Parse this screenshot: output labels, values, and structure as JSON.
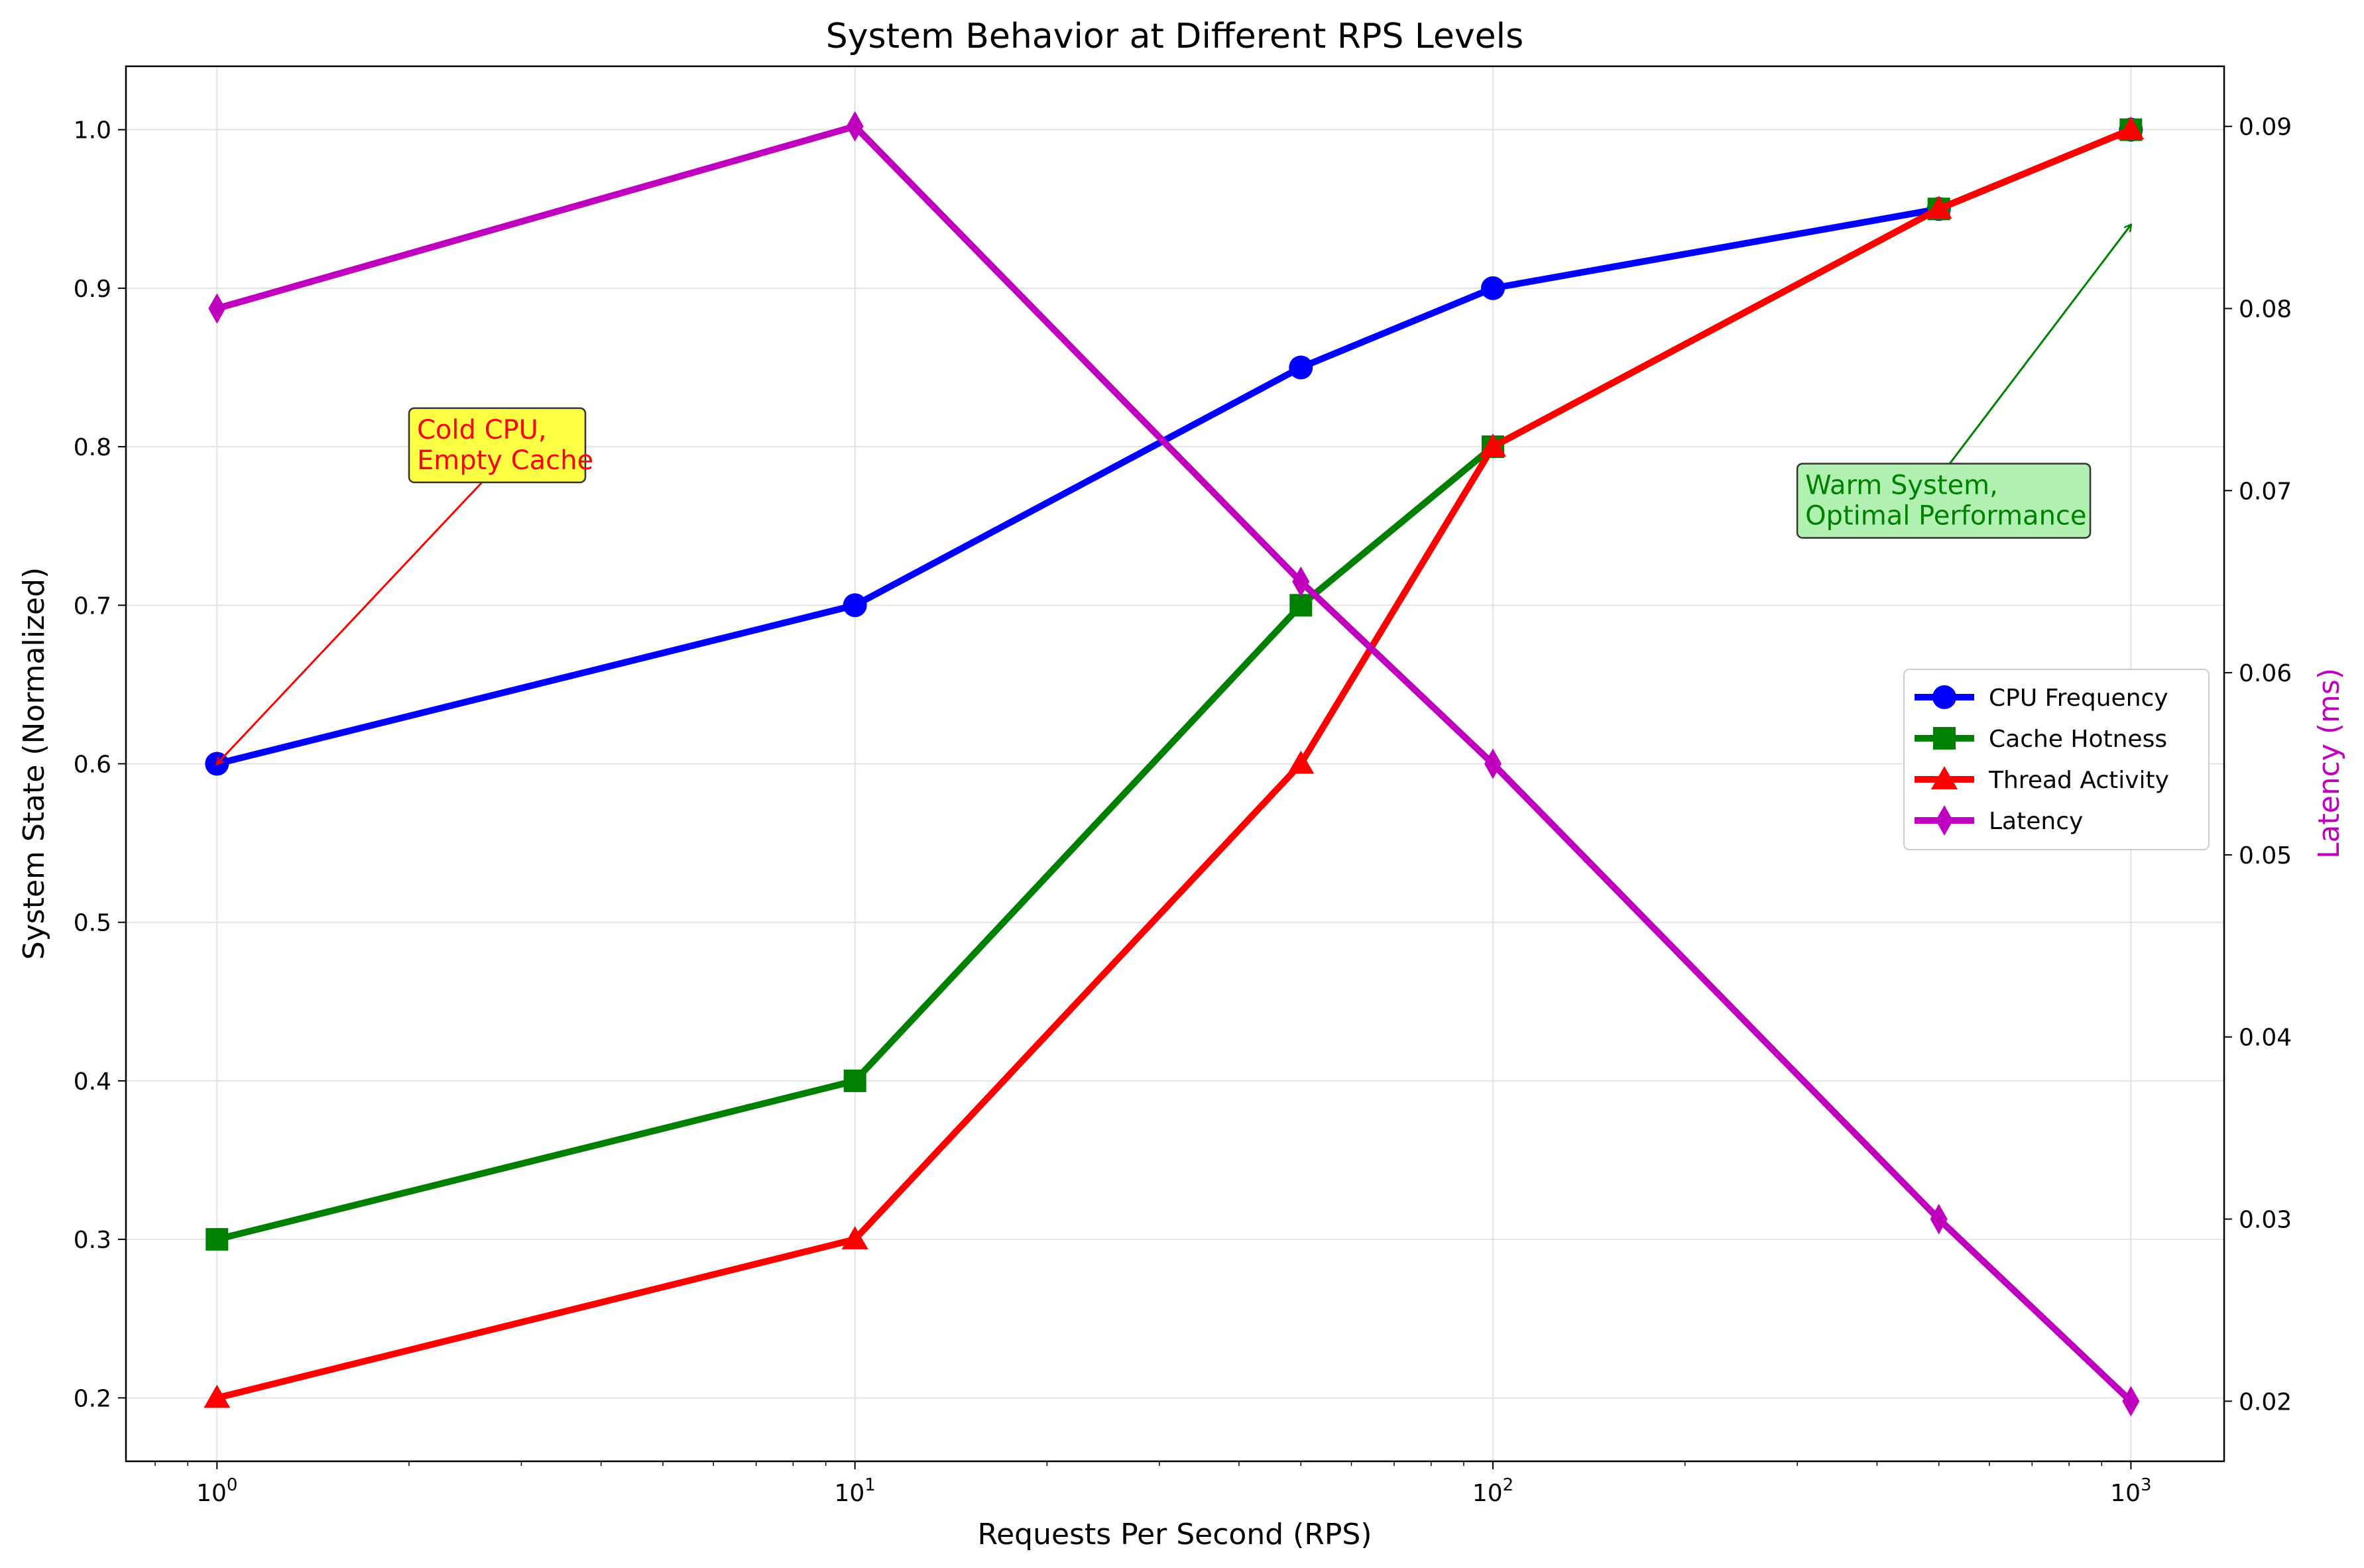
{
  "chart_data": {
    "type": "line",
    "title": "System Behavior at Different RPS Levels",
    "xlabel": "Requests Per Second (RPS)",
    "ylabel": "System State (Normalized)",
    "y2label": "Latency (ms)",
    "xscale": "log",
    "xlim": [
      0.72,
      1400
    ],
    "xticks": [
      {
        "value": 1,
        "base": "10",
        "exp": "0"
      },
      {
        "value": 10,
        "base": "10",
        "exp": "1"
      },
      {
        "value": 100,
        "base": "10",
        "exp": "2"
      },
      {
        "value": 1000,
        "base": "10",
        "exp": "3"
      }
    ],
    "ylim": [
      0.16,
      1.04
    ],
    "yticks": [
      "0.2",
      "0.3",
      "0.4",
      "0.5",
      "0.6",
      "0.7",
      "0.8",
      "0.9",
      "1.0"
    ],
    "y2lim": [
      0.0167,
      0.0933
    ],
    "y2ticks": [
      "0.02",
      "0.03",
      "0.04",
      "0.05",
      "0.06",
      "0.07",
      "0.08",
      "0.09"
    ],
    "grid": true,
    "legend_position": "center-right",
    "y2label_color": "#bf00bf",
    "series": [
      {
        "name": "CPU Frequency",
        "color": "#0000ff",
        "marker": "circle",
        "axis": "left",
        "x": [
          1,
          10,
          50,
          100,
          500,
          1000
        ],
        "y": [
          0.6,
          0.7,
          0.85,
          0.9,
          0.95,
          1.0
        ]
      },
      {
        "name": "Cache Hotness",
        "color": "#008000",
        "marker": "square",
        "axis": "left",
        "x": [
          1,
          10,
          50,
          100,
          500,
          1000
        ],
        "y": [
          0.3,
          0.4,
          0.7,
          0.8,
          0.95,
          1.0
        ]
      },
      {
        "name": "Thread Activity",
        "color": "#ff0000",
        "marker": "triangle",
        "axis": "left",
        "x": [
          1,
          10,
          50,
          100,
          500,
          1000
        ],
        "y": [
          0.2,
          0.3,
          0.6,
          0.8,
          0.95,
          1.0
        ]
      },
      {
        "name": "Latency",
        "color": "#bf00bf",
        "marker": "diamond",
        "axis": "right",
        "x": [
          1,
          10,
          50,
          100,
          500,
          1000
        ],
        "y": [
          0.08,
          0.09,
          0.065,
          0.055,
          0.03,
          0.02
        ]
      }
    ],
    "annotations": [
      {
        "lines": [
          "Cold CPU,",
          "Empty Cache"
        ],
        "text_color": "#ff0000",
        "box_color": "#ffff44",
        "arrow_color": "#ff0000",
        "target": {
          "x": 1,
          "y": 0.6
        },
        "anchor": {
          "x": 2.0,
          "y": 0.77
        }
      },
      {
        "lines": [
          "Warm System,",
          "Optimal Performance"
        ],
        "text_color": "#008000",
        "box_color": "#b0f0b0",
        "arrow_color": "#008000",
        "target": {
          "x": 1000,
          "y": 0.94
        },
        "anchor": {
          "x": 520,
          "y": 0.735
        }
      }
    ]
  }
}
